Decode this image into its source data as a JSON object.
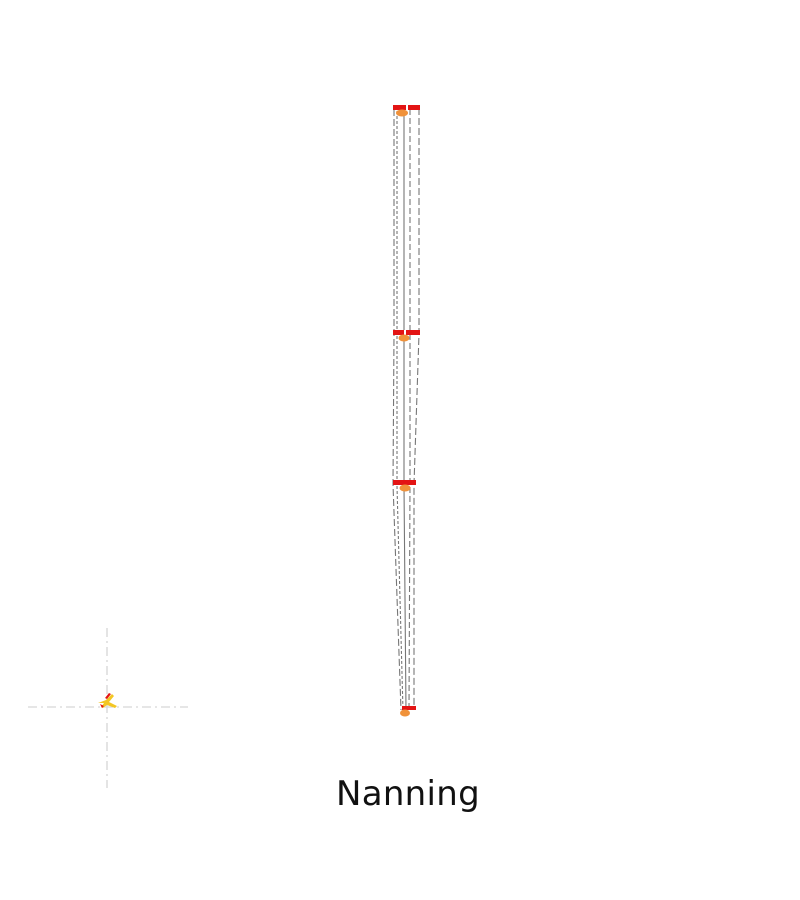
{
  "map": {
    "city_name": "Nanning",
    "colors": {
      "background": "#ffffff",
      "route_line": "#777777",
      "station_marker": "#e31414",
      "station_dot": "#f0923a",
      "compass_lines": "#d6d6d6",
      "compass_plane_fill": "#f3c623",
      "compass_plane_accent": "#e31414"
    },
    "stations": [
      "station-1",
      "station-2",
      "station-3",
      "station-4"
    ],
    "compass_icon": "airplane-icon"
  }
}
